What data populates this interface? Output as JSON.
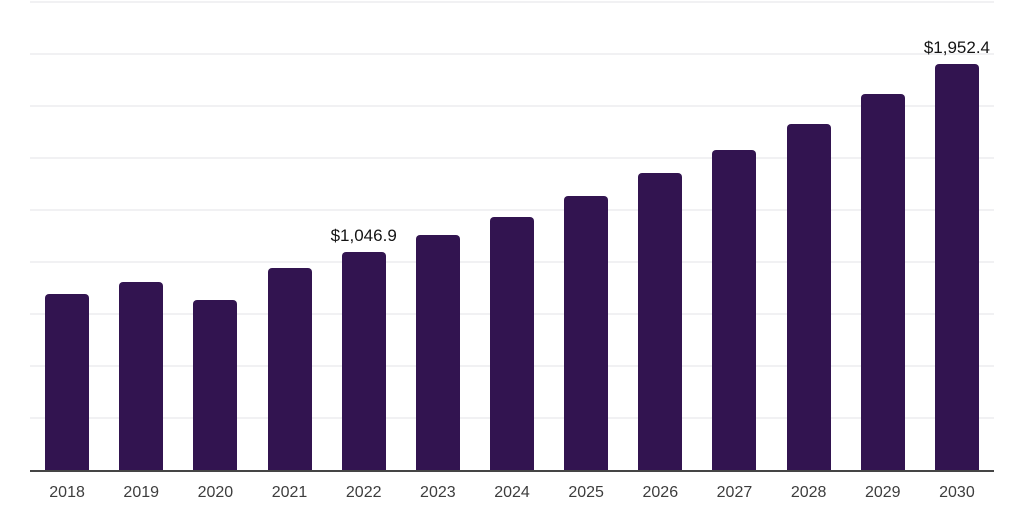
{
  "chart_data": {
    "type": "bar",
    "title": "",
    "xlabel": "",
    "ylabel": "",
    "categories": [
      "2018",
      "2019",
      "2020",
      "2021",
      "2022",
      "2023",
      "2024",
      "2025",
      "2026",
      "2027",
      "2028",
      "2029",
      "2030"
    ],
    "values": [
      846,
      902,
      817,
      970,
      1046.9,
      1130,
      1218,
      1317,
      1426,
      1538,
      1663,
      1806,
      1952.4
    ],
    "data_labels": {
      "2022": "$1,046.9",
      "2030": "$1,952.4"
    },
    "ylim": [
      0,
      2250
    ],
    "ytick_step": 250,
    "y_tick_labels_shown": false,
    "grid": true,
    "grid_orientation": "horizontal",
    "legend": false,
    "colors": {
      "bar": "#321450",
      "gridline": "#f1f1f3",
      "axis_line": "#454545",
      "x_tick_label": "#3d3d3d",
      "data_label": "#141414",
      "background": "#ffffff"
    }
  }
}
